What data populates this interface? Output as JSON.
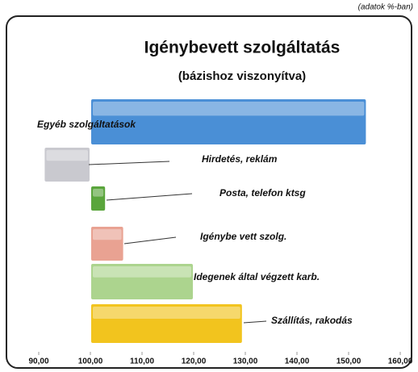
{
  "chart_data": {
    "type": "bar",
    "orientation": "horizontal",
    "baseline": 100,
    "note": "(adatok %-ban)",
    "title": "Igénybevett szolgáltatás",
    "subtitle": "(bázishoz viszonyítva)",
    "categories": [
      "Egyéb szolgáltatások",
      "Hirdetés, reklám",
      "Posta, telefon ktsg",
      "Igénybe vett szolg.",
      "Idegenek által végzett karb.",
      "Szállítás, rakodás"
    ],
    "values": [
      153.5,
      91,
      103,
      106.5,
      120,
      129.5
    ],
    "colors": [
      "#4a8fd6",
      "#c9c9cf",
      "#5aa53c",
      "#e9a292",
      "#acd48e",
      "#f2c41e"
    ],
    "xlim": [
      90,
      160
    ],
    "xticks": [
      {
        "value": 90,
        "label": "90,00"
      },
      {
        "value": 100,
        "label": "100,00"
      },
      {
        "value": 110,
        "label": "110,00"
      },
      {
        "value": 120,
        "label": "120,00"
      },
      {
        "value": 130,
        "label": "130,00"
      },
      {
        "value": 140,
        "label": "140,00"
      },
      {
        "value": 150,
        "label": "150,00"
      },
      {
        "value": 160,
        "label": "160,00"
      }
    ],
    "grid": false
  }
}
